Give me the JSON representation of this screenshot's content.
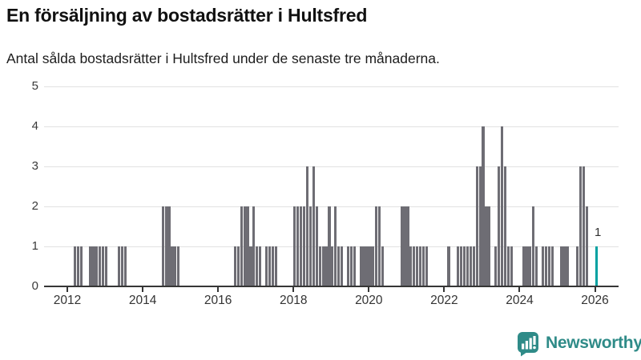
{
  "header": {
    "title": "En försäljning av bostadsrätter i Hultsfred",
    "subtitle": "Antal sålda bostadsrätter i Hultsfred under de senaste tre månaderna."
  },
  "chart_data": {
    "type": "bar",
    "title": "En försäljning av bostadsrätter i Hultsfred",
    "subtitle": "Antal sålda bostadsrätter i Hultsfred under de senaste tre månaderna.",
    "frequency": "monthly",
    "x_start": "2011-06",
    "x_end": "2026-01",
    "values": [
      0,
      0,
      0,
      0,
      0,
      0,
      0,
      0,
      0,
      1,
      1,
      1,
      0,
      0,
      1,
      1,
      1,
      1,
      1,
      1,
      0,
      0,
      0,
      1,
      1,
      1,
      0,
      0,
      0,
      0,
      0,
      0,
      0,
      0,
      0,
      0,
      0,
      2,
      2,
      2,
      1,
      1,
      1,
      0,
      0,
      0,
      0,
      0,
      0,
      0,
      0,
      0,
      0,
      0,
      0,
      0,
      0,
      0,
      0,
      0,
      1,
      1,
      2,
      2,
      2,
      1,
      2,
      1,
      1,
      0,
      1,
      1,
      1,
      1,
      0,
      0,
      0,
      0,
      0,
      2,
      2,
      2,
      2,
      3,
      2,
      3,
      2,
      1,
      1,
      1,
      2,
      1,
      2,
      1,
      1,
      0,
      1,
      1,
      1,
      0,
      1,
      1,
      1,
      1,
      1,
      2,
      2,
      1,
      0,
      0,
      0,
      0,
      0,
      2,
      2,
      2,
      1,
      1,
      1,
      1,
      1,
      1,
      0,
      0,
      0,
      0,
      0,
      0,
      1,
      0,
      0,
      1,
      1,
      1,
      1,
      1,
      1,
      3,
      3,
      4,
      2,
      2,
      0,
      1,
      3,
      4,
      3,
      1,
      1,
      0,
      0,
      0,
      1,
      1,
      1,
      2,
      1,
      0,
      1,
      1,
      1,
      1,
      0,
      0,
      1,
      1,
      1,
      0,
      0,
      1,
      3,
      3,
      2,
      0,
      0,
      1
    ],
    "highlight": {
      "index": 175,
      "label": "1",
      "color": "#00a1a1"
    },
    "bar_color": "#6e6d74",
    "grid_color": "#e2e2e2",
    "axis_color": "#363636",
    "ylim": [
      0,
      5
    ],
    "yticks": [
      0,
      1,
      2,
      3,
      4,
      5
    ],
    "xticks": [
      2012,
      2014,
      2016,
      2018,
      2020,
      2022,
      2024,
      2026
    ],
    "grid": "horizontal",
    "legend": "none"
  },
  "branding": {
    "logo_text": "Newsworthy",
    "logo_color": "#2f8b88",
    "logo_icon": "bar-chart-speech-bubble-icon"
  }
}
